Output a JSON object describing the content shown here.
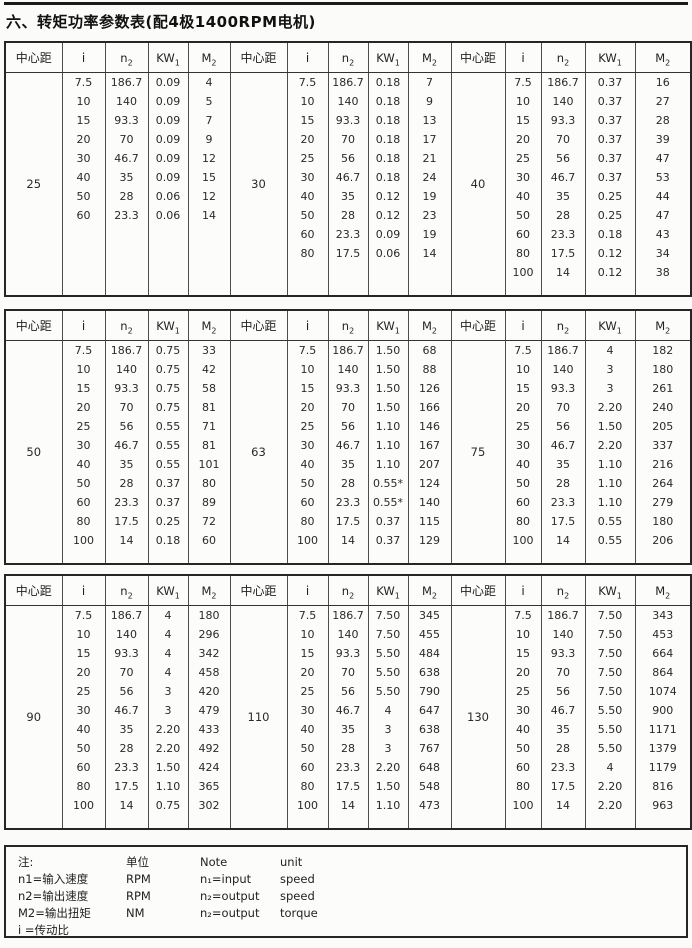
{
  "title": "六、转矩功率参数表(配4极1400RPM电机)",
  "header_labels": {
    "center": "中心距",
    "ratio": "i",
    "n": {
      "base": "n",
      "sub": "2"
    },
    "kw": {
      "base": "KW",
      "sub": "1"
    },
    "m": {
      "base": "M",
      "sub": "2"
    }
  },
  "tables": [
    {
      "blocks": [
        {
          "center_distance": "25",
          "rows": [
            [
              "7.5",
              "186.7",
              "0.09",
              "4"
            ],
            [
              "10",
              "140",
              "0.09",
              "5"
            ],
            [
              "15",
              "93.3",
              "0.09",
              "7"
            ],
            [
              "20",
              "70",
              "0.09",
              "9"
            ],
            [
              "30",
              "46.7",
              "0.09",
              "12"
            ],
            [
              "40",
              "35",
              "0.09",
              "15"
            ],
            [
              "50",
              "28",
              "0.06",
              "12"
            ],
            [
              "60",
              "23.3",
              "0.06",
              "14"
            ]
          ]
        },
        {
          "center_distance": "30",
          "rows": [
            [
              "7.5",
              "186.7",
              "0.18",
              "7"
            ],
            [
              "10",
              "140",
              "0.18",
              "9"
            ],
            [
              "15",
              "93.3",
              "0.18",
              "13"
            ],
            [
              "20",
              "70",
              "0.18",
              "17"
            ],
            [
              "25",
              "56",
              "0.18",
              "21"
            ],
            [
              "30",
              "46.7",
              "0.18",
              "24"
            ],
            [
              "40",
              "35",
              "0.12",
              "19"
            ],
            [
              "50",
              "28",
              "0.12",
              "23"
            ],
            [
              "60",
              "23.3",
              "0.09",
              "19"
            ],
            [
              "80",
              "17.5",
              "0.06",
              "14"
            ]
          ]
        },
        {
          "center_distance": "40",
          "rows": [
            [
              "7.5",
              "186.7",
              "0.37",
              "16"
            ],
            [
              "10",
              "140",
              "0.37",
              "27"
            ],
            [
              "15",
              "93.3",
              "0.37",
              "28"
            ],
            [
              "20",
              "70",
              "0.37",
              "39"
            ],
            [
              "25",
              "56",
              "0.37",
              "47"
            ],
            [
              "30",
              "46.7",
              "0.37",
              "53"
            ],
            [
              "40",
              "35",
              "0.25",
              "44"
            ],
            [
              "50",
              "28",
              "0.25",
              "47"
            ],
            [
              "60",
              "23.3",
              "0.18",
              "43"
            ],
            [
              "80",
              "17.5",
              "0.12",
              "34"
            ],
            [
              "100",
              "14",
              "0.12",
              "38"
            ]
          ]
        }
      ]
    },
    {
      "blocks": [
        {
          "center_distance": "50",
          "rows": [
            [
              "7.5",
              "186.7",
              "0.75",
              "33"
            ],
            [
              "10",
              "140",
              "0.75",
              "42"
            ],
            [
              "15",
              "93.3",
              "0.75",
              "58"
            ],
            [
              "20",
              "70",
              "0.75",
              "81"
            ],
            [
              "25",
              "56",
              "0.55",
              "71"
            ],
            [
              "30",
              "46.7",
              "0.55",
              "81"
            ],
            [
              "40",
              "35",
              "0.55",
              "101"
            ],
            [
              "50",
              "28",
              "0.37",
              "80"
            ],
            [
              "60",
              "23.3",
              "0.37",
              "89"
            ],
            [
              "80",
              "17.5",
              "0.25",
              "72"
            ],
            [
              "100",
              "14",
              "0.18",
              "60"
            ]
          ]
        },
        {
          "center_distance": "63",
          "rows": [
            [
              "7.5",
              "186.7",
              "1.50",
              "68"
            ],
            [
              "10",
              "140",
              "1.50",
              "88"
            ],
            [
              "15",
              "93.3",
              "1.50",
              "126"
            ],
            [
              "20",
              "70",
              "1.50",
              "166"
            ],
            [
              "25",
              "56",
              "1.10",
              "146"
            ],
            [
              "30",
              "46.7",
              "1.10",
              "167"
            ],
            [
              "40",
              "35",
              "1.10",
              "207"
            ],
            [
              "50",
              "28",
              "0.55*",
              "124"
            ],
            [
              "60",
              "23.3",
              "0.55*",
              "140"
            ],
            [
              "80",
              "17.5",
              "0.37",
              "115"
            ],
            [
              "100",
              "14",
              "0.37",
              "129"
            ]
          ]
        },
        {
          "center_distance": "75",
          "rows": [
            [
              "7.5",
              "186.7",
              "4",
              "182"
            ],
            [
              "10",
              "140",
              "3",
              "180"
            ],
            [
              "15",
              "93.3",
              "3",
              "261"
            ],
            [
              "20",
              "70",
              "2.20",
              "240"
            ],
            [
              "25",
              "56",
              "1.50",
              "205"
            ],
            [
              "30",
              "46.7",
              "2.20",
              "337"
            ],
            [
              "40",
              "35",
              "1.10",
              "216"
            ],
            [
              "50",
              "28",
              "1.10",
              "264"
            ],
            [
              "60",
              "23.3",
              "1.10",
              "279"
            ],
            [
              "80",
              "17.5",
              "0.55",
              "180"
            ],
            [
              "100",
              "14",
              "0.55",
              "206"
            ]
          ]
        }
      ]
    },
    {
      "blocks": [
        {
          "center_distance": "90",
          "rows": [
            [
              "7.5",
              "186.7",
              "4",
              "180"
            ],
            [
              "10",
              "140",
              "4",
              "296"
            ],
            [
              "15",
              "93.3",
              "4",
              "342"
            ],
            [
              "20",
              "70",
              "4",
              "458"
            ],
            [
              "25",
              "56",
              "3",
              "420"
            ],
            [
              "30",
              "46.7",
              "3",
              "479"
            ],
            [
              "40",
              "35",
              "2.20",
              "433"
            ],
            [
              "50",
              "28",
              "2.20",
              "492"
            ],
            [
              "60",
              "23.3",
              "1.50",
              "424"
            ],
            [
              "80",
              "17.5",
              "1.10",
              "365"
            ],
            [
              "100",
              "14",
              "0.75",
              "302"
            ]
          ]
        },
        {
          "center_distance": "110",
          "rows": [
            [
              "7.5",
              "186.7",
              "7.50",
              "345"
            ],
            [
              "10",
              "140",
              "7.50",
              "455"
            ],
            [
              "15",
              "93.3",
              "5.50",
              "484"
            ],
            [
              "20",
              "70",
              "5.50",
              "638"
            ],
            [
              "25",
              "56",
              "5.50",
              "790"
            ],
            [
              "30",
              "46.7",
              "4",
              "647"
            ],
            [
              "40",
              "35",
              "3",
              "638"
            ],
            [
              "50",
              "28",
              "3",
              "767"
            ],
            [
              "60",
              "23.3",
              "2.20",
              "648"
            ],
            [
              "80",
              "17.5",
              "1.50",
              "548"
            ],
            [
              "100",
              "14",
              "1.10",
              "473"
            ]
          ]
        },
        {
          "center_distance": "130",
          "rows": [
            [
              "7.5",
              "186.7",
              "7.50",
              "343"
            ],
            [
              "10",
              "140",
              "7.50",
              "453"
            ],
            [
              "15",
              "93.3",
              "7.50",
              "664"
            ],
            [
              "20",
              "70",
              "7.50",
              "864"
            ],
            [
              "25",
              "56",
              "7.50",
              "1074"
            ],
            [
              "30",
              "46.7",
              "5.50",
              "900"
            ],
            [
              "40",
              "35",
              "5.50",
              "1171"
            ],
            [
              "50",
              "28",
              "5.50",
              "1379"
            ],
            [
              "60",
              "23.3",
              "4",
              "1179"
            ],
            [
              "80",
              "17.5",
              "2.20",
              "816"
            ],
            [
              "100",
              "14",
              "2.20",
              "963"
            ]
          ]
        }
      ]
    }
  ],
  "note": {
    "rows": [
      [
        "注:",
        "单位",
        "Note",
        "unit"
      ],
      [
        "n1=输入速度",
        "RPM",
        "n₁=input",
        "speed"
      ],
      [
        "n2=输出速度",
        "RPM",
        "n₂=output",
        "speed"
      ],
      [
        "M2=输出扭矩",
        "NM",
        "n₂=output",
        "torque"
      ],
      [
        "i =传动比",
        "",
        "",
        ""
      ]
    ]
  }
}
